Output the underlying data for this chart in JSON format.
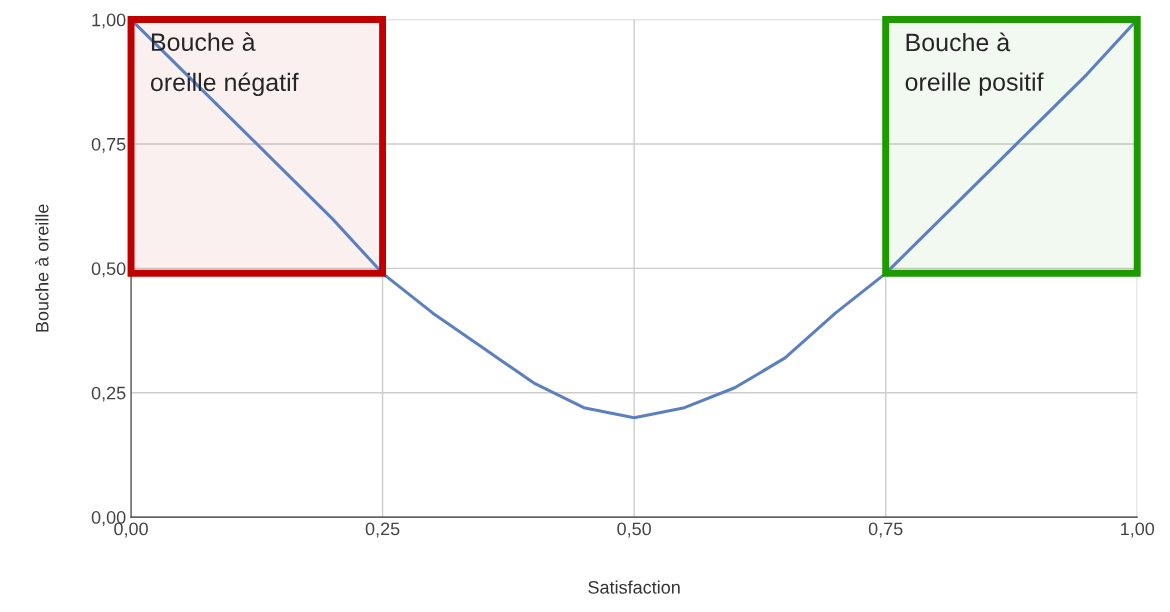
{
  "chart_data": {
    "type": "line",
    "xlabel": "Satisfaction",
    "ylabel": "Bouche à oreille",
    "x": [
      0,
      0.05,
      0.1,
      0.15,
      0.2,
      0.25,
      0.3,
      0.35,
      0.4,
      0.45,
      0.5,
      0.55,
      0.6,
      0.65,
      0.7,
      0.75,
      0.8,
      0.85,
      0.9,
      0.95,
      1.0
    ],
    "series": [
      {
        "color": "#5b80c0",
        "values": [
          1.0,
          0.9,
          0.8,
          0.7,
          0.6,
          0.49,
          0.41,
          0.34,
          0.27,
          0.22,
          0.2,
          0.22,
          0.26,
          0.32,
          0.41,
          0.49,
          0.59,
          0.69,
          0.79,
          0.89,
          1.0
        ]
      }
    ],
    "xlim": [
      0,
      1
    ],
    "ylim": [
      0,
      1
    ],
    "xticks": [
      {
        "value": 0,
        "label": "0,00"
      },
      {
        "value": 0.25,
        "label": "0,25"
      },
      {
        "value": 0.5,
        "label": "0,50"
      },
      {
        "value": 0.75,
        "label": "0,75"
      },
      {
        "value": 1,
        "label": "1,00"
      }
    ],
    "yticks": [
      {
        "value": 0,
        "label": "0,00"
      },
      {
        "value": 0.25,
        "label": "0,25"
      },
      {
        "value": 0.5,
        "label": "0,50"
      },
      {
        "value": 0.75,
        "label": "0,75"
      },
      {
        "value": 1,
        "label": "1,00"
      }
    ],
    "bands": [
      {
        "axis": "x",
        "from": 0,
        "to": 0.25,
        "label": "Bouche à oreille négatif",
        "color": "#c00000"
      },
      {
        "axis": "x",
        "from": 0.75,
        "to": 1,
        "label": "Bouche à oreille positif",
        "color": "#1e9a00"
      }
    ],
    "grid": true,
    "marker": "none",
    "line_style": "solid",
    "legend": false
  }
}
